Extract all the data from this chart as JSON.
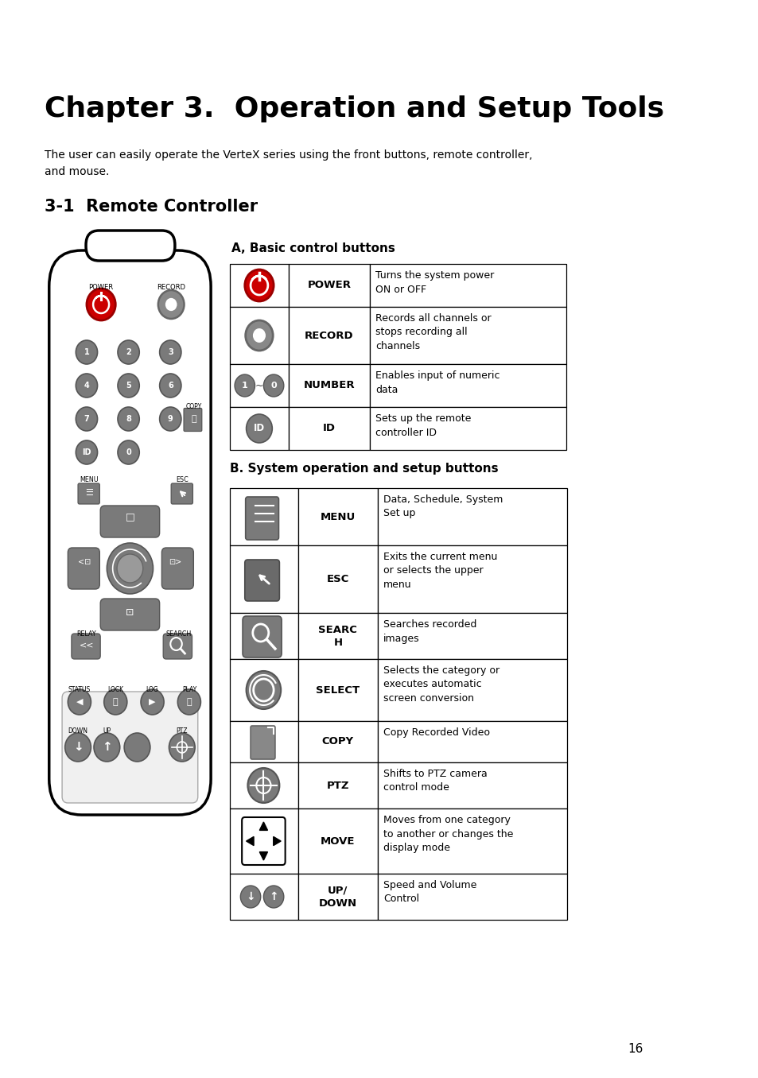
{
  "title": "Chapter 3.  Operation and Setup Tools",
  "intro": "The user can easily operate the VerteX series using the front buttons, remote controller,\nand mouse.",
  "section": "3-1  Remote Controller",
  "subsection_a": "A, Basic control buttons",
  "subsection_b": "B. System operation and setup buttons",
  "table_a": [
    [
      "POWER",
      "Turns the system power\nON or OFF"
    ],
    [
      "RECORD",
      "Records all channels or\nstops recording all\nchannels"
    ],
    [
      "NUMBER",
      "Enables input of numeric\ndata"
    ],
    [
      "ID",
      "Sets up the remote\ncontroller ID"
    ]
  ],
  "table_b": [
    [
      "MENU",
      "Data, Schedule, System\nSet up"
    ],
    [
      "ESC",
      "Exits the current menu\nor selects the upper\nmenu"
    ],
    [
      "SEARC\nH",
      "Searches recorded\nimages"
    ],
    [
      "SELECT",
      "Selects the category or\nexecutes automatic\nscreen conversion"
    ],
    [
      "COPY",
      "Copy Recorded Video"
    ],
    [
      "PTZ",
      "Shifts to PTZ camera\ncontrol mode"
    ],
    [
      "MOVE",
      "Moves from one category\nto another or changes the\ndisplay mode"
    ],
    [
      "UP/\nDOWN",
      "Speed and Volume\nControl"
    ]
  ],
  "page_number": "16",
  "bg_color": "#ffffff",
  "text_color": "#000000",
  "gray_btn": "#7a7a7a",
  "gray_dark": "#555555",
  "red_color": "#cc0000",
  "red_dark": "#990000"
}
